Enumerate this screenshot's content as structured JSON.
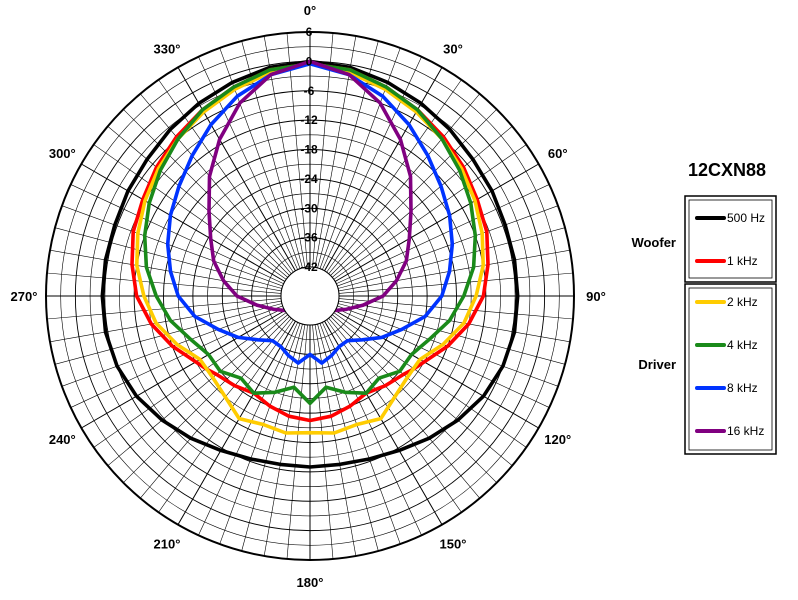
{
  "chart_data": {
    "type": "polar",
    "title": "12CXN88",
    "angle_labels": [
      "0°",
      "30°",
      "60°",
      "90°",
      "120°",
      "150°",
      "180°",
      "210°",
      "240°",
      "270°",
      "300°",
      "330°"
    ],
    "angle_label_values": [
      0,
      30,
      60,
      90,
      120,
      150,
      180,
      210,
      240,
      270,
      300,
      330
    ],
    "radial_labels": [
      "6",
      "0",
      "-6",
      "-12",
      "-18",
      "-24",
      "-30",
      "-36",
      "-42"
    ],
    "radial_values": [
      6,
      0,
      -6,
      -12,
      -18,
      -24,
      -30,
      -36,
      -42
    ],
    "rlim": [
      -42,
      6
    ],
    "angle_step_deg": 5,
    "legend_groups": [
      {
        "name": "Woofer",
        "series_index": [
          0,
          1
        ]
      },
      {
        "name": "Driver",
        "series_index": [
          2,
          3,
          4,
          5
        ]
      }
    ],
    "series": [
      {
        "name": "500 Hz",
        "color": "#000000",
        "points": [
          [
            0,
            0
          ],
          [
            10,
            -0.5
          ],
          [
            20,
            -1.5
          ],
          [
            30,
            -2.5
          ],
          [
            40,
            -3.5
          ],
          [
            50,
            -4.5
          ],
          [
            60,
            -5
          ],
          [
            70,
            -5.5
          ],
          [
            80,
            -5.5
          ],
          [
            90,
            -5.5
          ],
          [
            100,
            -5.5
          ],
          [
            110,
            -6
          ],
          [
            120,
            -7
          ],
          [
            130,
            -8.5
          ],
          [
            140,
            -10
          ],
          [
            150,
            -11.5
          ],
          [
            160,
            -12.5
          ],
          [
            170,
            -13
          ],
          [
            180,
            -13
          ],
          [
            190,
            -13
          ],
          [
            200,
            -12.5
          ],
          [
            210,
            -11.5
          ],
          [
            220,
            -10
          ],
          [
            230,
            -8.5
          ],
          [
            240,
            -7
          ],
          [
            250,
            -6
          ],
          [
            260,
            -5.5
          ],
          [
            270,
            -5.5
          ],
          [
            280,
            -5.5
          ],
          [
            290,
            -5.5
          ],
          [
            300,
            -5
          ],
          [
            310,
            -4.5
          ],
          [
            320,
            -3.5
          ],
          [
            330,
            -2.5
          ],
          [
            340,
            -1.5
          ],
          [
            350,
            -0.5
          ]
        ]
      },
      {
        "name": "1 kHz",
        "color": "#ff0000",
        "points": [
          [
            0,
            -0.5
          ],
          [
            10,
            -1
          ],
          [
            20,
            -2.5
          ],
          [
            30,
            -4
          ],
          [
            40,
            -5.5
          ],
          [
            50,
            -7
          ],
          [
            60,
            -8.5
          ],
          [
            70,
            -9.5
          ],
          [
            80,
            -11
          ],
          [
            90,
            -12.5
          ],
          [
            100,
            -15
          ],
          [
            110,
            -18
          ],
          [
            120,
            -21
          ],
          [
            125,
            -22
          ],
          [
            130,
            -23
          ],
          [
            140,
            -24
          ],
          [
            150,
            -25
          ],
          [
            160,
            -24
          ],
          [
            170,
            -23
          ],
          [
            180,
            -22.5
          ],
          [
            190,
            -23
          ],
          [
            200,
            -24
          ],
          [
            210,
            -25
          ],
          [
            220,
            -24
          ],
          [
            230,
            -23
          ],
          [
            235,
            -22
          ],
          [
            240,
            -21
          ],
          [
            250,
            -18
          ],
          [
            260,
            -15
          ],
          [
            270,
            -12.5
          ],
          [
            280,
            -11
          ],
          [
            290,
            -9.5
          ],
          [
            300,
            -8.5
          ],
          [
            310,
            -7
          ],
          [
            320,
            -5.5
          ],
          [
            330,
            -4
          ],
          [
            340,
            -2.5
          ],
          [
            350,
            -1
          ]
        ]
      },
      {
        "name": "2 kHz",
        "color": "#ffcc00",
        "points": [
          [
            0,
            -0.5
          ],
          [
            10,
            -1.5
          ],
          [
            20,
            -3
          ],
          [
            30,
            -4.5
          ],
          [
            40,
            -6
          ],
          [
            50,
            -7.5
          ],
          [
            60,
            -9
          ],
          [
            70,
            -10.5
          ],
          [
            80,
            -12
          ],
          [
            90,
            -14
          ],
          [
            100,
            -16
          ],
          [
            110,
            -19
          ],
          [
            120,
            -22
          ],
          [
            130,
            -22
          ],
          [
            140,
            -21
          ],
          [
            150,
            -19
          ],
          [
            160,
            -20
          ],
          [
            170,
            -19.5
          ],
          [
            180,
            -20
          ],
          [
            190,
            -19.5
          ],
          [
            200,
            -20
          ],
          [
            210,
            -19
          ],
          [
            220,
            -21
          ],
          [
            230,
            -22
          ],
          [
            240,
            -22
          ],
          [
            250,
            -19
          ],
          [
            260,
            -16
          ],
          [
            270,
            -14
          ],
          [
            280,
            -12
          ],
          [
            290,
            -10.5
          ],
          [
            300,
            -9
          ],
          [
            310,
            -7.5
          ],
          [
            320,
            -6
          ],
          [
            330,
            -4.5
          ],
          [
            340,
            -3
          ],
          [
            350,
            -1.5
          ]
        ]
      },
      {
        "name": "4 kHz",
        "color": "#1a8a1a",
        "points": [
          [
            0,
            -0.5
          ],
          [
            10,
            -1
          ],
          [
            20,
            -2.5
          ],
          [
            30,
            -4
          ],
          [
            40,
            -6
          ],
          [
            50,
            -8
          ],
          [
            60,
            -10
          ],
          [
            70,
            -12
          ],
          [
            80,
            -14
          ],
          [
            90,
            -16.5
          ],
          [
            100,
            -19
          ],
          [
            110,
            -22
          ],
          [
            120,
            -24
          ],
          [
            130,
            -24
          ],
          [
            140,
            -26
          ],
          [
            150,
            -25
          ],
          [
            160,
            -27
          ],
          [
            170,
            -29
          ],
          [
            180,
            -26
          ],
          [
            190,
            -29
          ],
          [
            200,
            -27
          ],
          [
            210,
            -25
          ],
          [
            220,
            -26
          ],
          [
            230,
            -24
          ],
          [
            240,
            -24
          ],
          [
            250,
            -22
          ],
          [
            260,
            -19
          ],
          [
            270,
            -16.5
          ],
          [
            280,
            -14
          ],
          [
            290,
            -12
          ],
          [
            300,
            -10
          ],
          [
            310,
            -8
          ],
          [
            320,
            -6
          ],
          [
            330,
            -4
          ],
          [
            340,
            -2.5
          ],
          [
            350,
            -1
          ]
        ]
      },
      {
        "name": "8 kHz",
        "color": "#0033ff",
        "points": [
          [
            0,
            -0.5
          ],
          [
            10,
            -2
          ],
          [
            20,
            -4.5
          ],
          [
            30,
            -7.5
          ],
          [
            40,
            -10.5
          ],
          [
            50,
            -13
          ],
          [
            60,
            -15
          ],
          [
            70,
            -17
          ],
          [
            80,
            -19
          ],
          [
            90,
            -21
          ],
          [
            100,
            -24
          ],
          [
            110,
            -28
          ],
          [
            120,
            -31
          ],
          [
            130,
            -34
          ],
          [
            140,
            -36
          ],
          [
            150,
            -36
          ],
          [
            160,
            -35
          ],
          [
            170,
            -34
          ],
          [
            180,
            -36
          ],
          [
            190,
            -34
          ],
          [
            200,
            -35
          ],
          [
            210,
            -36
          ],
          [
            220,
            -36
          ],
          [
            230,
            -34
          ],
          [
            240,
            -31
          ],
          [
            250,
            -28
          ],
          [
            260,
            -24
          ],
          [
            270,
            -21
          ],
          [
            280,
            -19
          ],
          [
            290,
            -17
          ],
          [
            300,
            -15
          ],
          [
            310,
            -13
          ],
          [
            320,
            -10.5
          ],
          [
            330,
            -7.5
          ],
          [
            340,
            -4.5
          ],
          [
            350,
            -2
          ]
        ]
      },
      {
        "name": "16 kHz",
        "color": "#800080",
        "points": [
          [
            0,
            0
          ],
          [
            10,
            -2
          ],
          [
            20,
            -6
          ],
          [
            30,
            -11
          ],
          [
            40,
            -16
          ],
          [
            50,
            -21
          ],
          [
            60,
            -24.5
          ],
          [
            70,
            -27
          ],
          [
            80,
            -30
          ],
          [
            90,
            -33
          ],
          [
            100,
            -37
          ],
          [
            110,
            -40
          ],
          [
            120,
            -42
          ],
          [
            240,
            -42
          ],
          [
            250,
            -40
          ],
          [
            260,
            -37
          ],
          [
            270,
            -33
          ],
          [
            280,
            -30
          ],
          [
            290,
            -27
          ],
          [
            300,
            -24.5
          ],
          [
            310,
            -21
          ],
          [
            320,
            -16
          ],
          [
            330,
            -11
          ],
          [
            340,
            -6
          ],
          [
            350,
            -2
          ]
        ]
      }
    ]
  }
}
